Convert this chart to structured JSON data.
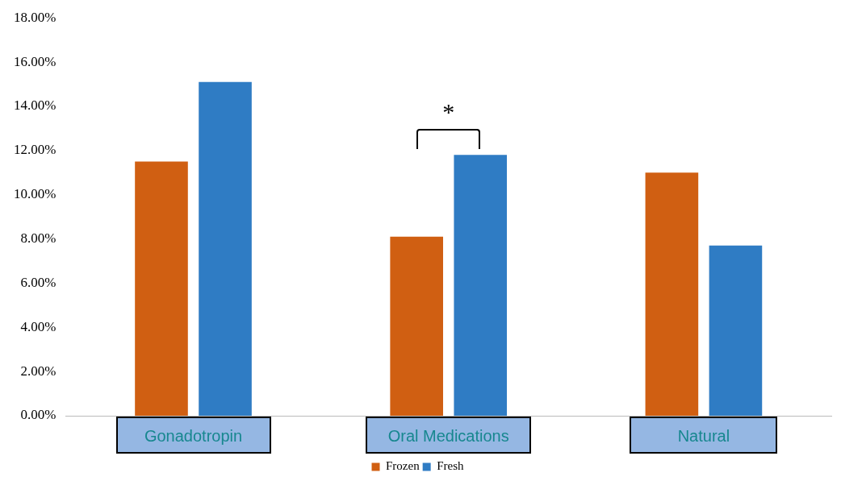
{
  "chart_data": {
    "type": "bar",
    "categories": [
      "Gonadotropin",
      "Oral Medications",
      "Natural"
    ],
    "series": [
      {
        "name": "Frozen",
        "color": "#d05f12",
        "values": [
          11.5,
          8.1,
          11.0
        ]
      },
      {
        "name": "Fresh",
        "color": "#2f7cc4",
        "values": [
          15.1,
          11.8,
          7.7
        ]
      }
    ],
    "ylim": [
      0,
      18
    ],
    "yticks": [
      {
        "value": 0,
        "label": "0.00%"
      },
      {
        "value": 2,
        "label": "2.00%"
      },
      {
        "value": 4,
        "label": "4.00%"
      },
      {
        "value": 6,
        "label": "6.00%"
      },
      {
        "value": 8,
        "label": "8.00%"
      },
      {
        "value": 10,
        "label": "10.00%"
      },
      {
        "value": 12,
        "label": "12.00%"
      },
      {
        "value": 14,
        "label": "14.00%"
      },
      {
        "value": 16,
        "label": "16.00%"
      },
      {
        "value": 18,
        "label": "18.00%"
      }
    ],
    "grid": false,
    "legend": "bottom",
    "annotations": [
      "*"
    ]
  }
}
